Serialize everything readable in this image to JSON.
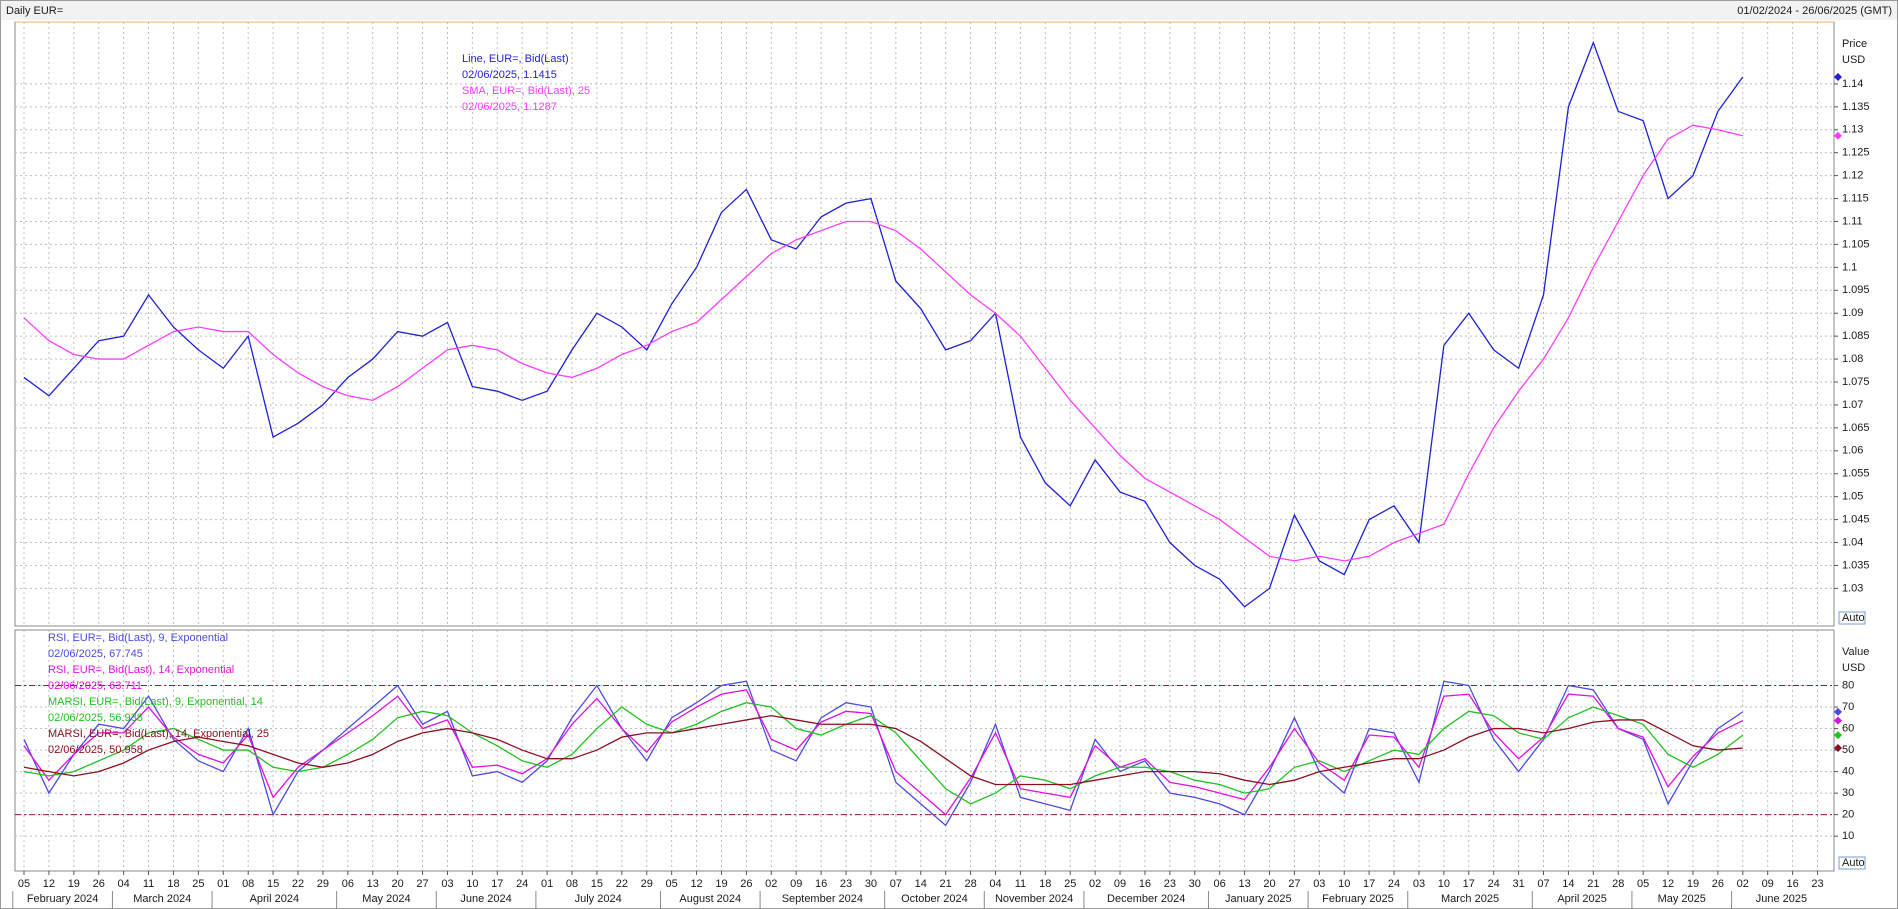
{
  "header": {
    "title": "Daily EUR=",
    "range": "01/02/2024 - 26/06/2025 (GMT)"
  },
  "x_axis": {
    "months": [
      {
        "name": "February 2024",
        "days": [
          "05",
          "12",
          "19",
          "26"
        ]
      },
      {
        "name": "March 2024",
        "days": [
          "04",
          "11",
          "18",
          "25"
        ]
      },
      {
        "name": "April 2024",
        "days": [
          "01",
          "08",
          "15",
          "22",
          "29"
        ]
      },
      {
        "name": "May 2024",
        "days": [
          "06",
          "13",
          "20",
          "27"
        ]
      },
      {
        "name": "June 2024",
        "days": [
          "03",
          "10",
          "17",
          "24"
        ]
      },
      {
        "name": "July 2024",
        "days": [
          "01",
          "08",
          "15",
          "22",
          "29"
        ]
      },
      {
        "name": "August 2024",
        "days": [
          "05",
          "12",
          "19",
          "26"
        ]
      },
      {
        "name": "September 2024",
        "days": [
          "02",
          "09",
          "16",
          "23",
          "30"
        ]
      },
      {
        "name": "October 2024",
        "days": [
          "07",
          "14",
          "21",
          "28"
        ]
      },
      {
        "name": "November 2024",
        "days": [
          "04",
          "11",
          "18",
          "25"
        ]
      },
      {
        "name": "December 2024",
        "days": [
          "02",
          "09",
          "16",
          "23",
          "30"
        ]
      },
      {
        "name": "January 2025",
        "days": [
          "06",
          "13",
          "20",
          "27"
        ]
      },
      {
        "name": "February 2025",
        "days": [
          "03",
          "10",
          "17",
          "24"
        ]
      },
      {
        "name": "March 2025",
        "days": [
          "03",
          "10",
          "17",
          "24",
          "31"
        ]
      },
      {
        "name": "April 2025",
        "days": [
          "07",
          "14",
          "21",
          "28"
        ]
      },
      {
        "name": "May 2025",
        "days": [
          "05",
          "12",
          "19",
          "26"
        ]
      },
      {
        "name": "June 2025",
        "days": [
          "02",
          "09",
          "16",
          "23"
        ]
      }
    ]
  },
  "chart_data": [
    {
      "type": "line",
      "axis_title": "Price",
      "axis_unit": "USD",
      "axis_mode": "Auto",
      "grid": true,
      "ylim": [
        1.0218,
        1.1535
      ],
      "yticks": [
        1.03,
        1.035,
        1.04,
        1.045,
        1.05,
        1.055,
        1.06,
        1.065,
        1.07,
        1.075,
        1.08,
        1.085,
        1.09,
        1.095,
        1.1,
        1.105,
        1.11,
        1.115,
        1.12,
        1.125,
        1.13,
        1.135,
        1.14
      ],
      "series": [
        {
          "name": "Line, EUR=, Bid(Last)",
          "legend_value": "02/06/2025, 1.1415",
          "color": "#1f1fd6",
          "values": [
            1.076,
            1.072,
            1.078,
            1.084,
            1.085,
            1.094,
            1.087,
            1.082,
            1.078,
            1.085,
            1.063,
            1.066,
            1.07,
            1.076,
            1.08,
            1.086,
            1.085,
            1.088,
            1.074,
            1.073,
            1.071,
            1.073,
            1.082,
            1.09,
            1.087,
            1.082,
            1.092,
            1.1,
            1.112,
            1.117,
            1.106,
            1.104,
            1.111,
            1.114,
            1.115,
            1.097,
            1.091,
            1.082,
            1.084,
            1.09,
            1.063,
            1.053,
            1.048,
            1.058,
            1.051,
            1.049,
            1.04,
            1.035,
            1.032,
            1.026,
            1.03,
            1.046,
            1.036,
            1.033,
            1.045,
            1.048,
            1.04,
            1.083,
            1.09,
            1.082,
            1.078,
            1.094,
            1.135,
            1.149,
            1.134,
            1.132,
            1.115,
            1.12,
            1.134,
            1.1415,
            null,
            null,
            null
          ]
        },
        {
          "name": "SMA, EUR=, Bid(Last),  25",
          "legend_value": "02/06/2025, 1.1287",
          "color": "#ff3cff",
          "values": [
            1.089,
            1.084,
            1.081,
            1.08,
            1.08,
            1.083,
            1.086,
            1.087,
            1.086,
            1.086,
            1.081,
            1.077,
            1.074,
            1.072,
            1.071,
            1.074,
            1.078,
            1.082,
            1.083,
            1.082,
            1.079,
            1.077,
            1.076,
            1.078,
            1.081,
            1.083,
            1.086,
            1.088,
            1.093,
            1.098,
            1.103,
            1.106,
            1.108,
            1.11,
            1.11,
            1.108,
            1.104,
            1.099,
            1.094,
            1.09,
            1.085,
            1.078,
            1.071,
            1.065,
            1.059,
            1.054,
            1.051,
            1.048,
            1.045,
            1.041,
            1.037,
            1.036,
            1.037,
            1.036,
            1.037,
            1.04,
            1.042,
            1.044,
            1.055,
            1.065,
            1.073,
            1.08,
            1.089,
            1.1,
            1.11,
            1.12,
            1.128,
            1.131,
            1.13,
            1.1287,
            null,
            null,
            null
          ]
        }
      ]
    },
    {
      "type": "line",
      "axis_title": "Value",
      "axis_unit": "USD",
      "axis_mode": "Auto",
      "grid": true,
      "ylim": [
        -6.2,
        105.8
      ],
      "yticks": [
        10,
        20,
        30,
        40,
        50,
        60,
        70,
        80
      ],
      "levels": [
        80,
        20
      ],
      "level_color": "#a0103c",
      "series": [
        {
          "name": "RSI, EUR=, Bid(Last),  9, Exponential",
          "legend_value": "02/06/2025, 67.745",
          "color": "#4b4be0",
          "values": [
            55,
            30,
            48,
            62,
            60,
            75,
            55,
            45,
            40,
            60,
            20,
            40,
            50,
            60,
            70,
            80,
            62,
            68,
            38,
            40,
            35,
            45,
            65,
            80,
            60,
            45,
            65,
            72,
            80,
            82,
            50,
            45,
            65,
            72,
            70,
            35,
            25,
            15,
            35,
            62,
            28,
            25,
            22,
            55,
            40,
            45,
            30,
            28,
            25,
            20,
            40,
            65,
            40,
            30,
            60,
            58,
            35,
            82,
            80,
            55,
            40,
            55,
            80,
            78,
            60,
            55,
            25,
            45,
            60,
            67.745,
            null,
            null,
            null
          ]
        },
        {
          "name": "RSI, EUR=, Bid(Last),  14, Exponential",
          "legend_value": "02/06/2025, 63.711",
          "color": "#e010e0",
          "values": [
            52,
            36,
            48,
            58,
            58,
            70,
            56,
            48,
            44,
            57,
            28,
            42,
            50,
            58,
            66,
            75,
            60,
            64,
            42,
            43,
            39,
            46,
            62,
            74,
            60,
            49,
            63,
            70,
            76,
            78,
            55,
            50,
            63,
            68,
            67,
            40,
            30,
            20,
            37,
            58,
            32,
            30,
            28,
            52,
            42,
            46,
            35,
            33,
            30,
            27,
            42,
            60,
            44,
            36,
            57,
            56,
            42,
            75,
            76,
            58,
            46,
            56,
            76,
            75,
            60,
            56,
            33,
            47,
            58,
            63.711,
            null,
            null,
            null
          ]
        },
        {
          "name": "MARSI, EUR=, Bid(Last),  9, Exponential, 14",
          "legend_value": "02/06/2025, 56.938",
          "color": "#20c020",
          "values": [
            40,
            38,
            40,
            45,
            50,
            58,
            60,
            55,
            50,
            50,
            42,
            40,
            42,
            48,
            55,
            65,
            68,
            66,
            58,
            52,
            45,
            42,
            48,
            60,
            70,
            62,
            58,
            62,
            68,
            72,
            70,
            60,
            57,
            62,
            66,
            58,
            45,
            32,
            25,
            30,
            38,
            36,
            32,
            38,
            42,
            42,
            40,
            36,
            34,
            30,
            32,
            42,
            45,
            40,
            45,
            50,
            48,
            60,
            68,
            66,
            58,
            55,
            65,
            70,
            66,
            62,
            48,
            42,
            48,
            56.938,
            null,
            null,
            null
          ]
        },
        {
          "name": "MARSI, EUR=, Bid(Last),  14, Exponential, 25",
          "legend_value": "02/06/2025, 50.958",
          "color": "#8b1020",
          "values": [
            42,
            40,
            38,
            40,
            44,
            50,
            54,
            56,
            54,
            52,
            48,
            44,
            42,
            44,
            48,
            54,
            58,
            60,
            58,
            55,
            50,
            46,
            46,
            50,
            56,
            58,
            58,
            60,
            62,
            64,
            66,
            64,
            62,
            62,
            62,
            60,
            54,
            46,
            38,
            34,
            34,
            34,
            34,
            36,
            38,
            40,
            40,
            40,
            39,
            36,
            34,
            36,
            40,
            42,
            44,
            46,
            46,
            50,
            56,
            60,
            60,
            58,
            60,
            63,
            64,
            64,
            58,
            52,
            50,
            50.958,
            null,
            null,
            null
          ]
        }
      ]
    }
  ]
}
